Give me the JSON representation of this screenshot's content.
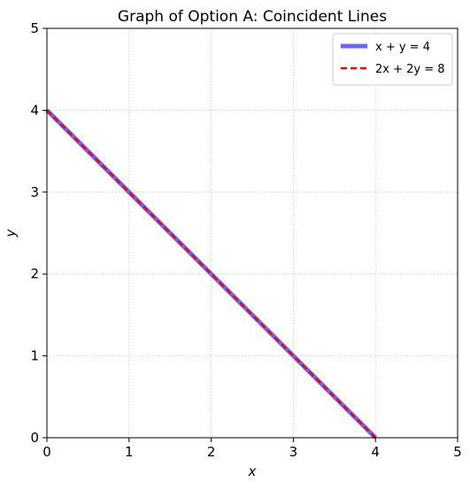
{
  "chart_data": {
    "type": "line",
    "title": "Graph of Option A: Coincident Lines",
    "xlabel": "x",
    "ylabel": "y",
    "xlim": [
      0,
      5
    ],
    "ylim": [
      0,
      5
    ],
    "xticks": [
      0,
      1,
      2,
      3,
      4,
      5
    ],
    "yticks": [
      0,
      1,
      2,
      3,
      4,
      5
    ],
    "grid": true,
    "legend_position": "top-right",
    "series": [
      {
        "name": "x + y = 4",
        "style": "solid",
        "color": "#6666ff",
        "x": [
          0,
          4
        ],
        "y": [
          4,
          0
        ]
      },
      {
        "name": "2x + 2y = 8",
        "style": "dashed",
        "color": "#ff0000",
        "x": [
          0,
          4
        ],
        "y": [
          4,
          0
        ]
      }
    ]
  }
}
